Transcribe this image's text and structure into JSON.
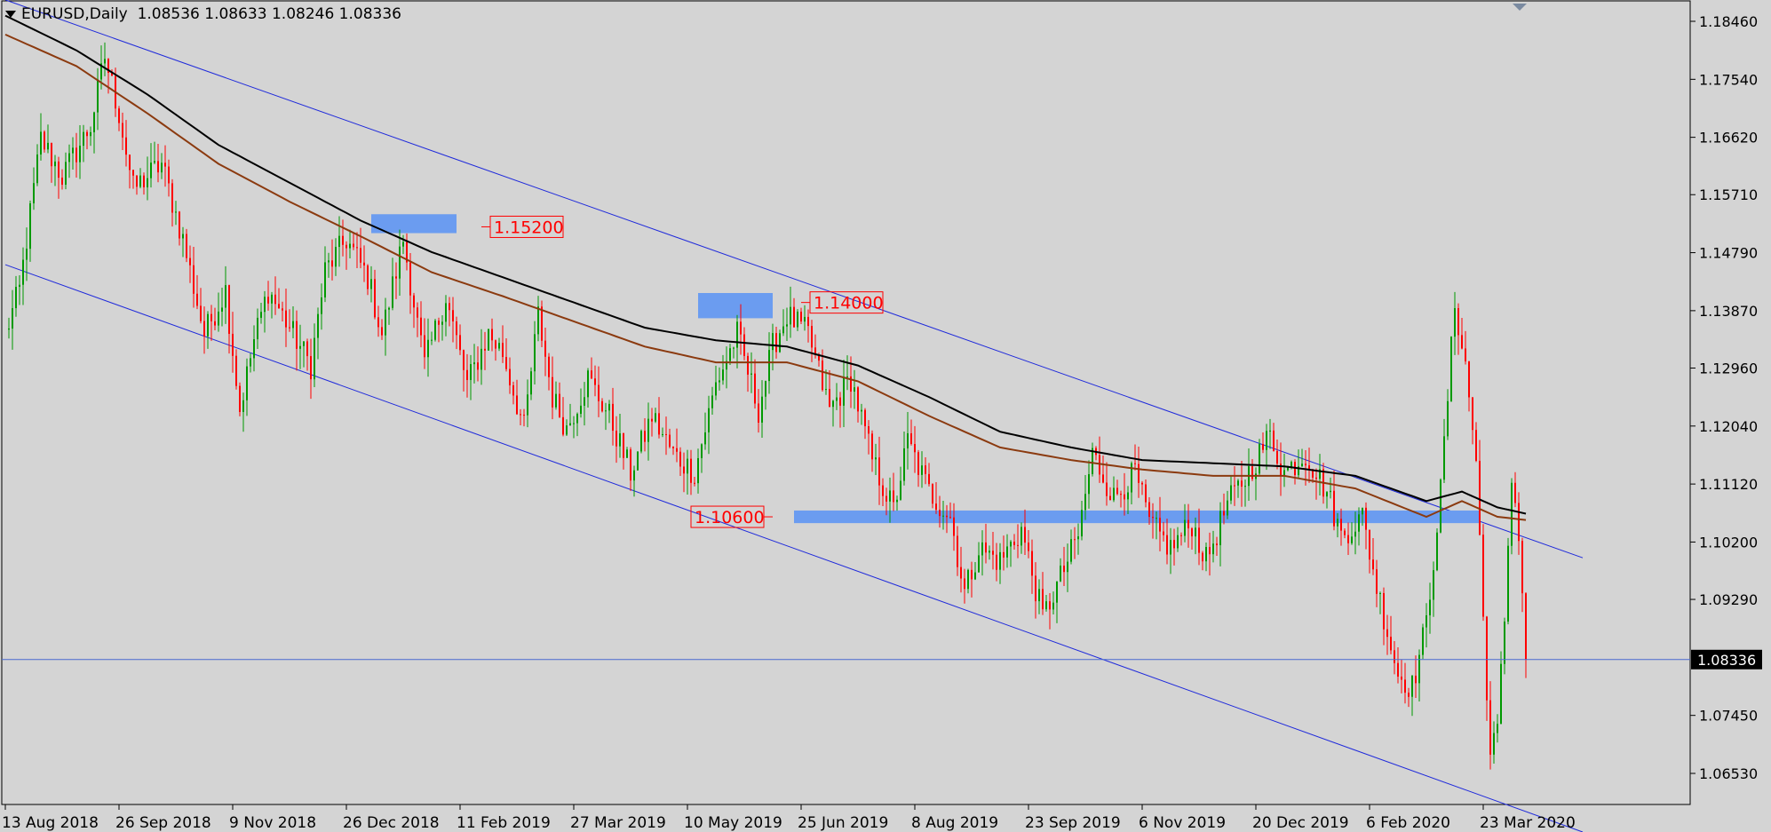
{
  "header": {
    "symbol_timeframe": "EURUSD,Daily",
    "ohlc": "1.08536 1.08633 1.08246 1.08336"
  },
  "chart_data": {
    "type": "candlestick",
    "title": "EURUSD,Daily",
    "ylim": [
      1.06,
      1.1895
    ],
    "y_ticks": [
      "1.18460",
      "1.17540",
      "1.16620",
      "1.15710",
      "1.14790",
      "1.13870",
      "1.12960",
      "1.12040",
      "1.11120",
      "1.10200",
      "1.09290",
      "1.08336",
      "1.07450",
      "1.06530"
    ],
    "x_ticks": [
      {
        "label": "13 Aug 2018",
        "bar": 0
      },
      {
        "label": "26 Sep 2018",
        "bar": 32
      },
      {
        "label": "9 Nov 2018",
        "bar": 64
      },
      {
        "label": "26 Dec 2018",
        "bar": 96
      },
      {
        "label": "11 Feb 2019",
        "bar": 128
      },
      {
        "label": "27 Mar 2019",
        "bar": 160
      },
      {
        "label": "10 May 2019",
        "bar": 192
      },
      {
        "label": "25 Jun 2019",
        "bar": 224
      },
      {
        "label": "8 Aug 2019",
        "bar": 256
      },
      {
        "label": "23 Sep 2019",
        "bar": 288
      },
      {
        "label": "6 Nov 2019",
        "bar": 320
      },
      {
        "label": "20 Dec 2019",
        "bar": 352
      },
      {
        "label": "6 Feb 2020",
        "bar": 384
      },
      {
        "label": "23 Mar 2020",
        "bar": 416
      }
    ],
    "bar_count": 428,
    "current_price": 1.08336,
    "current_price_label": "1.08336",
    "price_path": [
      [
        0,
        1.135
      ],
      [
        4,
        1.142
      ],
      [
        10,
        1.166
      ],
      [
        16,
        1.16
      ],
      [
        24,
        1.168
      ],
      [
        28,
        1.179
      ],
      [
        32,
        1.17
      ],
      [
        36,
        1.158
      ],
      [
        44,
        1.162
      ],
      [
        50,
        1.15
      ],
      [
        56,
        1.135
      ],
      [
        62,
        1.142
      ],
      [
        66,
        1.123
      ],
      [
        70,
        1.134
      ],
      [
        74,
        1.142
      ],
      [
        80,
        1.136
      ],
      [
        86,
        1.13
      ],
      [
        90,
        1.145
      ],
      [
        96,
        1.15
      ],
      [
        102,
        1.144
      ],
      [
        106,
        1.135
      ],
      [
        112,
        1.15
      ],
      [
        118,
        1.13
      ],
      [
        124,
        1.141
      ],
      [
        130,
        1.127
      ],
      [
        136,
        1.135
      ],
      [
        140,
        1.132
      ],
      [
        146,
        1.12
      ],
      [
        150,
        1.138
      ],
      [
        154,
        1.125
      ],
      [
        158,
        1.12
      ],
      [
        164,
        1.128
      ],
      [
        170,
        1.122
      ],
      [
        176,
        1.113
      ],
      [
        182,
        1.122
      ],
      [
        188,
        1.116
      ],
      [
        194,
        1.113
      ],
      [
        200,
        1.127
      ],
      [
        206,
        1.135
      ],
      [
        212,
        1.123
      ],
      [
        216,
        1.133
      ],
      [
        220,
        1.138
      ],
      [
        226,
        1.135
      ],
      [
        232,
        1.123
      ],
      [
        238,
        1.128
      ],
      [
        244,
        1.115
      ],
      [
        250,
        1.107
      ],
      [
        254,
        1.118
      ],
      [
        260,
        1.11
      ],
      [
        266,
        1.106
      ],
      [
        270,
        1.094
      ],
      [
        274,
        1.101
      ],
      [
        280,
        1.099
      ],
      [
        286,
        1.104
      ],
      [
        292,
        1.09
      ],
      [
        296,
        1.095
      ],
      [
        302,
        1.103
      ],
      [
        306,
        1.116
      ],
      [
        312,
        1.109
      ],
      [
        318,
        1.113
      ],
      [
        322,
        1.105
      ],
      [
        328,
        1.101
      ],
      [
        334,
        1.105
      ],
      [
        338,
        1.099
      ],
      [
        344,
        1.108
      ],
      [
        350,
        1.113
      ],
      [
        356,
        1.119
      ],
      [
        360,
        1.113
      ],
      [
        366,
        1.116
      ],
      [
        372,
        1.11
      ],
      [
        376,
        1.103
      ],
      [
        382,
        1.106
      ],
      [
        386,
        1.095
      ],
      [
        392,
        1.081
      ],
      [
        396,
        1.079
      ],
      [
        400,
        1.089
      ],
      [
        404,
        1.11
      ],
      [
        406,
        1.125
      ],
      [
        408,
        1.14
      ],
      [
        411,
        1.13
      ],
      [
        414,
        1.115
      ],
      [
        416,
        1.09
      ],
      [
        418,
        1.068
      ],
      [
        420,
        1.072
      ],
      [
        422,
        1.09
      ],
      [
        424,
        1.113
      ],
      [
        426,
        1.103
      ],
      [
        428,
        1.085
      ]
    ],
    "ma_fast_anchor": [
      [
        0,
        1.1825
      ],
      [
        20,
        1.1775
      ],
      [
        40,
        1.17
      ],
      [
        60,
        1.162
      ],
      [
        80,
        1.156
      ],
      [
        100,
        1.1505
      ],
      [
        120,
        1.1448
      ],
      [
        140,
        1.141
      ],
      [
        160,
        1.137
      ],
      [
        180,
        1.133
      ],
      [
        200,
        1.1305
      ],
      [
        220,
        1.1305
      ],
      [
        240,
        1.1275
      ],
      [
        260,
        1.122
      ],
      [
        280,
        1.117
      ],
      [
        300,
        1.115
      ],
      [
        320,
        1.1135
      ],
      [
        340,
        1.1125
      ],
      [
        360,
        1.1125
      ],
      [
        380,
        1.1105
      ],
      [
        400,
        1.106
      ],
      [
        410,
        1.1085
      ],
      [
        420,
        1.106
      ],
      [
        428,
        1.1055
      ]
    ],
    "ma_slow_anchor": [
      [
        0,
        1.1855
      ],
      [
        20,
        1.18
      ],
      [
        40,
        1.173
      ],
      [
        60,
        1.165
      ],
      [
        80,
        1.159
      ],
      [
        100,
        1.153
      ],
      [
        120,
        1.148
      ],
      [
        140,
        1.144
      ],
      [
        160,
        1.14
      ],
      [
        180,
        1.136
      ],
      [
        200,
        1.134
      ],
      [
        220,
        1.133
      ],
      [
        240,
        1.13
      ],
      [
        260,
        1.125
      ],
      [
        280,
        1.1195
      ],
      [
        300,
        1.117
      ],
      [
        320,
        1.115
      ],
      [
        340,
        1.1145
      ],
      [
        360,
        1.114
      ],
      [
        380,
        1.1125
      ],
      [
        400,
        1.1085
      ],
      [
        410,
        1.11
      ],
      [
        420,
        1.1075
      ],
      [
        428,
        1.1065
      ]
    ],
    "channel_lines": [
      {
        "from": [
          0,
          1.188
        ],
        "to": [
          444,
          1.0995
        ],
        "color": "#1f2adb"
      },
      {
        "from": [
          0,
          1.146
        ],
        "to": [
          444,
          1.056
        ],
        "color": "#1f2adb"
      }
    ],
    "zones": [
      {
        "from_bar": 103,
        "to_bar": 127,
        "top": 1.154,
        "bottom": 1.151,
        "label": "1.15200",
        "label_bar": 134,
        "label_price": 1.152,
        "side": "right"
      },
      {
        "from_bar": 195,
        "to_bar": 216,
        "top": 1.1415,
        "bottom": 1.1375,
        "label": "1.14000",
        "label_bar": 224,
        "label_price": 1.14,
        "side": "right"
      },
      {
        "from_bar": 222,
        "to_bar": 415,
        "top": 1.107,
        "bottom": 1.105,
        "label": "1.10600",
        "label_bar": 216,
        "label_price": 1.106,
        "side": "left"
      }
    ],
    "colors": {
      "background": "#d4d4d4",
      "bull": "#009900",
      "bear": "#ff0000",
      "ma_fast": "#000000",
      "ma_slow": "#8b3a0f",
      "zone": "#6b9cf0",
      "axis_text": "#000000",
      "price_badge_bg": "#000000",
      "price_badge_text": "#ffffff",
      "price_line": "#4a6ad0",
      "label_text": "#ff0000",
      "label_border": "#ff0000"
    }
  }
}
